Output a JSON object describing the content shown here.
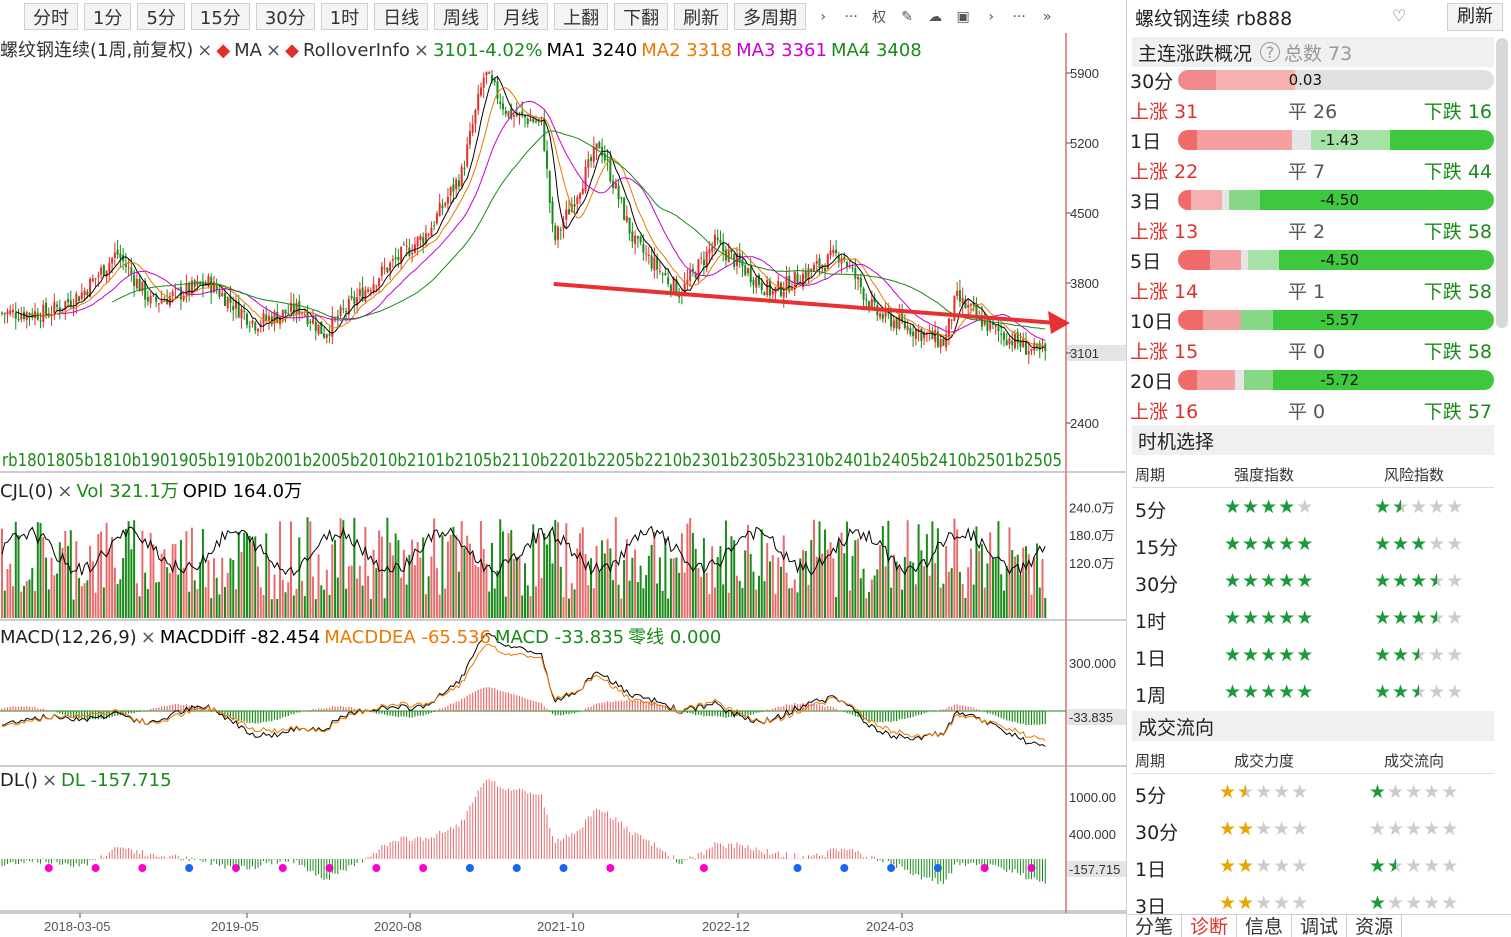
{
  "toolbar": {
    "buttons": [
      "分时",
      "1分",
      "5分",
      "15分",
      "30分",
      "1时",
      "日线",
      "周线",
      "月线",
      "上翻",
      "下翻",
      "刷新",
      "多周期"
    ],
    "icons": [
      "chevron-right-icon",
      "more-icon",
      "rights-icon",
      "pen-icon",
      "cloud-icon",
      "image-icon"
    ],
    "rights_label": "权",
    "more_label": "···",
    "chev_label": "›",
    "dbl_chev_label": "»"
  },
  "main_legend": {
    "title": "螺纹钢连续(1周,前复权)",
    "ma_label": "MA",
    "rollover_label": "RolloverInfo",
    "price_change": "3101-4.02%",
    "ma1": "MA1 3240",
    "ma2": "MA2 3318",
    "ma3": "MA3 3361",
    "ma4": "MA4 3408",
    "close_sep": "×"
  },
  "price_axis": [
    "5900",
    "5200",
    "4500",
    "3800",
    "3101",
    "2400"
  ],
  "contract_labels": "rb1801805b1810b1901905b1910b2001b2005b2010b2101b2105b2110b2201b2205b2210b2301b2305b2310b2401b2405b2410b2501b2505",
  "vol_legend": {
    "title": "CJL(0)",
    "vol": "Vol 321.1万",
    "opid": "OPID 164.0万",
    "axis": [
      "240.0万",
      "180.0万",
      "120.0万"
    ]
  },
  "macd_legend": {
    "title": "MACD(12,26,9)",
    "diff": "MACDDiff -82.454",
    "dea": "MACDDEA -65.536",
    "macd": "MACD -33.835",
    "zero": "零线 0.000",
    "axis": [
      "300.000",
      "-33.835"
    ]
  },
  "dl_legend": {
    "title": "DL()",
    "dl": "DL -157.715",
    "axis": [
      "1000.00",
      "400.000",
      "-157.715"
    ]
  },
  "date_axis": [
    "2018-03-05",
    "2019-05",
    "2020-08",
    "2021-10",
    "2022-12",
    "2024-03"
  ],
  "colors": {
    "up": "#e0302a",
    "down": "#1a8a1a",
    "ma1": "#000000",
    "ma2": "#ee7700",
    "ma3": "#cc00cc",
    "ma4": "#1a8a1a",
    "arrow": "#e83030"
  },
  "chart_data": {
    "type": "candlestick",
    "symbol": "螺纹钢连续 rb888",
    "period": "1周",
    "last_close": 3101,
    "change_pct": -4.02,
    "ma": {
      "MA1": 3240,
      "MA2": 3318,
      "MA3": 3361,
      "MA4": 3408
    },
    "ylim": [
      2100,
      6200
    ],
    "approx_close_path": [
      [
        "2018-03",
        3500
      ],
      [
        "2018-06",
        3700
      ],
      [
        "2018-09",
        4100
      ],
      [
        "2018-12",
        3600
      ],
      [
        "2019-05",
        3800
      ],
      [
        "2019-09",
        3400
      ],
      [
        "2020-01",
        3550
      ],
      [
        "2020-03",
        3300
      ],
      [
        "2020-08",
        3900
      ],
      [
        "2020-12",
        4300
      ],
      [
        "2021-03",
        4900
      ],
      [
        "2021-05",
        5900
      ],
      [
        "2021-07",
        5500
      ],
      [
        "2021-10",
        5400
      ],
      [
        "2021-11",
        4200
      ],
      [
        "2022-03",
        5200
      ],
      [
        "2022-06",
        4200
      ],
      [
        "2022-10",
        3700
      ],
      [
        "2023-01",
        4200
      ],
      [
        "2023-06",
        3700
      ],
      [
        "2023-12",
        4100
      ],
      [
        "2024-03",
        3500
      ],
      [
        "2024-09",
        3200
      ],
      [
        "2024-10",
        3650
      ],
      [
        "2025-01",
        3350
      ],
      [
        "2025-05",
        3101
      ]
    ],
    "volume_axis_ticks": [
      "240.0万",
      "180.0万",
      "120.0万"
    ],
    "macd": {
      "diff": -82.454,
      "dea": -65.536,
      "macd": -33.835,
      "zero": 0.0
    },
    "dl": -157.715,
    "annotation": "red trend arrow from 2021-11 low toward 2025-05"
  },
  "right_panel": {
    "title": "螺纹钢连续 rb888",
    "refresh": "刷新",
    "section1": "主连涨跌概况",
    "total": "总数 73",
    "bars": [
      {
        "label": "30分",
        "value": "0.03",
        "up": "上涨 31",
        "flat": "平 26",
        "down": "下跌 16"
      },
      {
        "label": "1日",
        "value": "-1.43",
        "up": "上涨 22",
        "flat": "平 7",
        "down": "下跌 44"
      },
      {
        "label": "3日",
        "value": "-4.50",
        "up": "上涨 13",
        "flat": "平 2",
        "down": "下跌 58"
      },
      {
        "label": "5日",
        "value": "-4.50",
        "up": "上涨 14",
        "flat": "平 1",
        "down": "下跌 58"
      },
      {
        "label": "10日",
        "value": "-5.57",
        "up": "上涨 15",
        "flat": "平 0",
        "down": "下跌 58"
      },
      {
        "label": "20日",
        "value": "-5.72",
        "up": "上涨 16",
        "flat": "平 0",
        "down": "下跌 57"
      }
    ],
    "section2": "时机选择",
    "timing_head": [
      "周期",
      "强度指数",
      "风险指数"
    ],
    "timing_rows": [
      {
        "period": "5分",
        "strength": 4,
        "risk": 1.5
      },
      {
        "period": "15分",
        "strength": 5,
        "risk": 3
      },
      {
        "period": "30分",
        "strength": 5,
        "risk": 3.5
      },
      {
        "period": "1时",
        "strength": 5,
        "risk": 3.5
      },
      {
        "period": "1日",
        "strength": 5,
        "risk": 2.5
      },
      {
        "period": "1周",
        "strength": 5,
        "risk": 2.5
      }
    ],
    "section3": "成交流向",
    "flow_head": [
      "周期",
      "成交力度",
      "成交流向"
    ],
    "flow_rows": [
      {
        "period": "5分",
        "power": 1.5,
        "flow": 1
      },
      {
        "period": "30分",
        "power": 2,
        "flow": 0
      },
      {
        "period": "1日",
        "power": 2,
        "flow": 1.5
      },
      {
        "period": "3日",
        "power": 2,
        "flow": 1
      }
    ],
    "tabs": [
      "分笔",
      "诊断",
      "信息",
      "调试",
      "资源"
    ],
    "active_tab": "诊断"
  }
}
